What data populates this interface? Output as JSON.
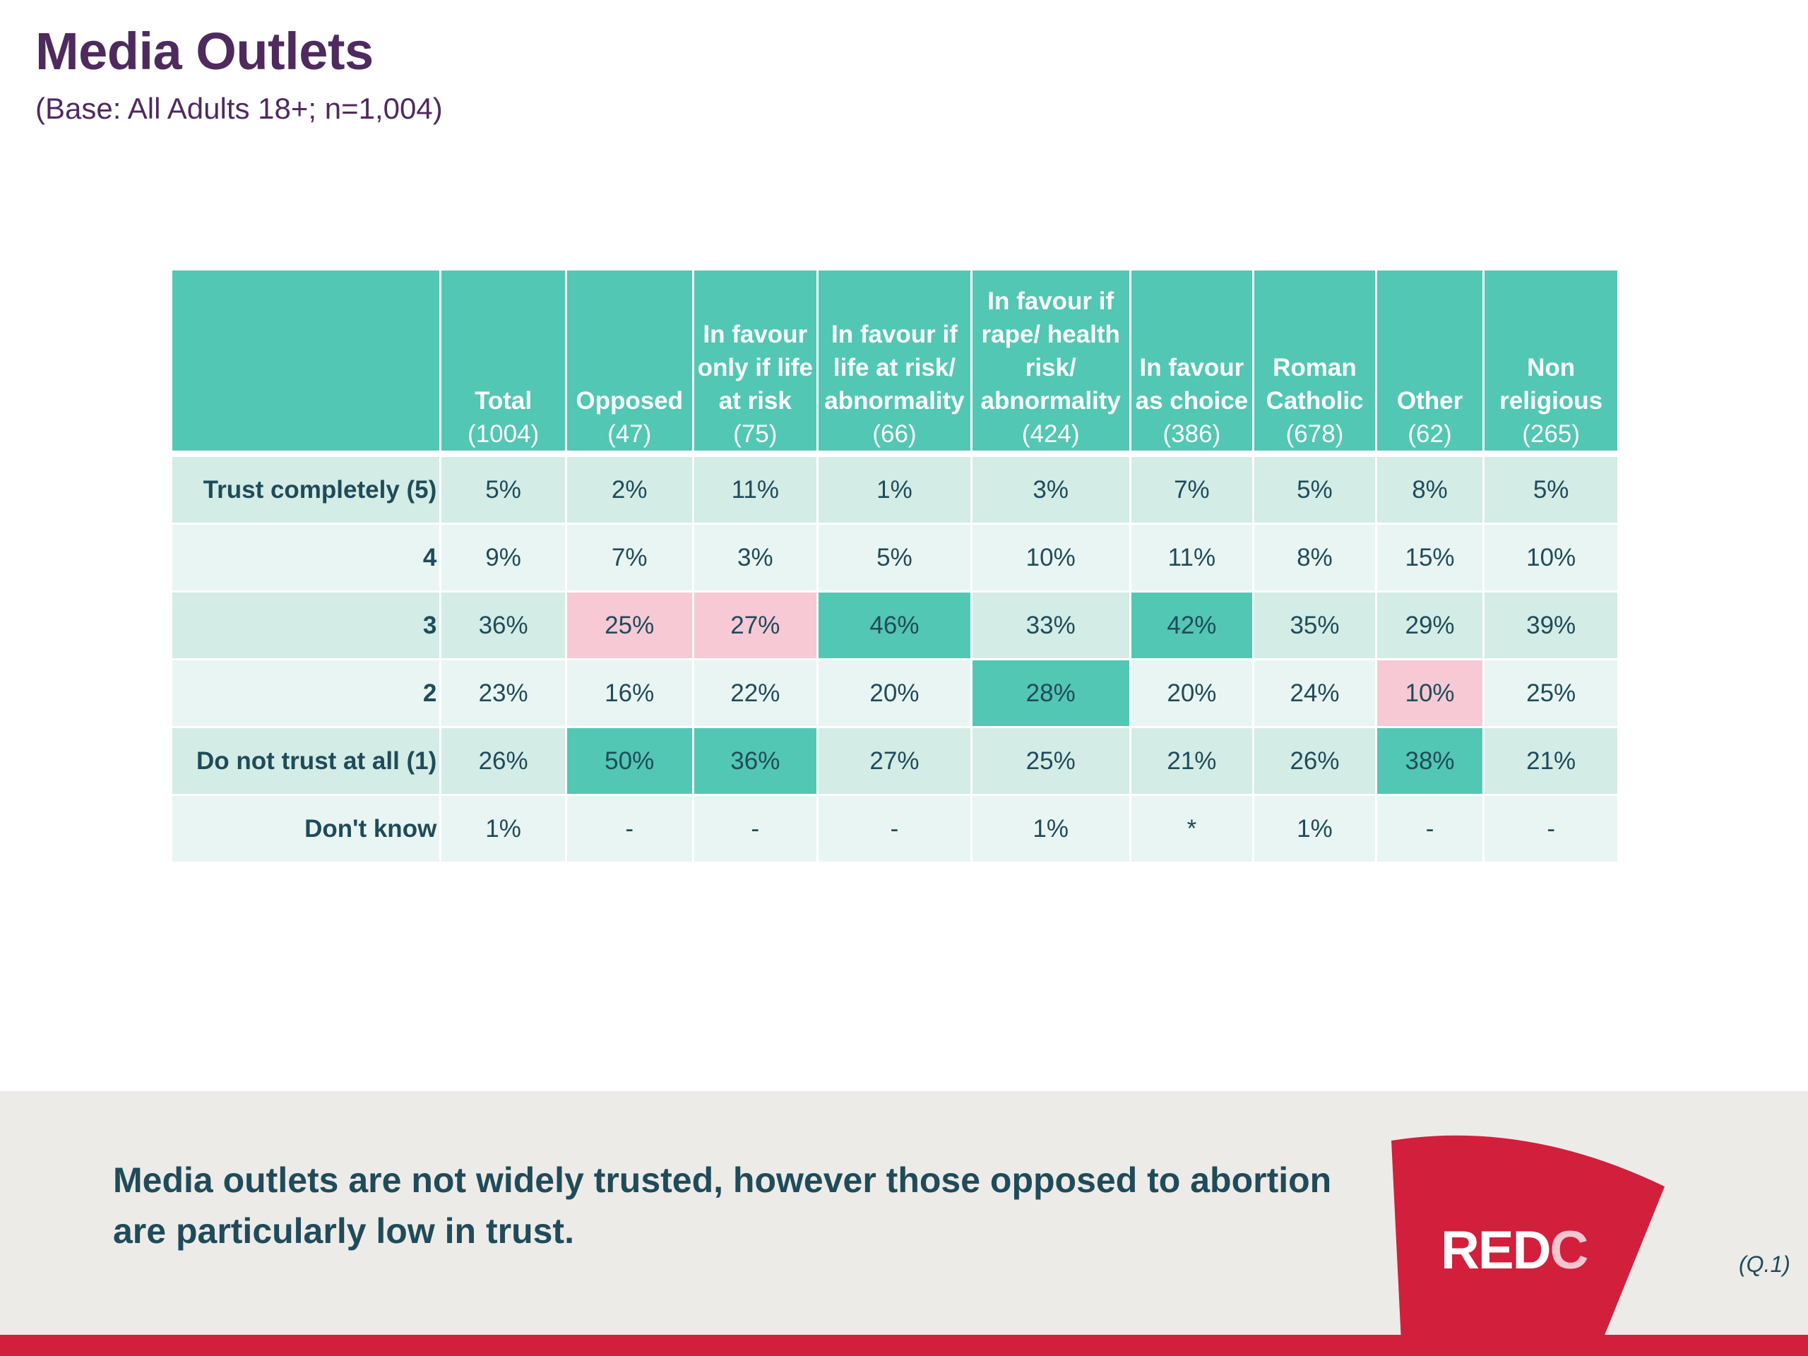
{
  "page": {
    "title": "Media Outlets",
    "subtitle": "(Base: All Adults 18+; n=1,004)"
  },
  "table": {
    "columns": [
      {
        "label_lines": [
          "Total"
        ],
        "n": "(1004)"
      },
      {
        "label_lines": [
          "Opposed"
        ],
        "n": "(47)"
      },
      {
        "label_lines": [
          "In favour",
          "only if life",
          "at risk"
        ],
        "n": "(75)"
      },
      {
        "label_lines": [
          "In favour if",
          "life at risk/",
          "abnormality"
        ],
        "n": "(66)"
      },
      {
        "label_lines": [
          "In favour if",
          "rape/ health",
          "risk/",
          "abnormality"
        ],
        "n": "(424)"
      },
      {
        "label_lines": [
          "In favour",
          "as choice"
        ],
        "n": "(386)"
      },
      {
        "label_lines": [
          "Roman",
          "Catholic"
        ],
        "n": "(678)"
      },
      {
        "label_lines": [
          "Other"
        ],
        "n": "(62)"
      },
      {
        "label_lines": [
          "Non",
          "religious"
        ],
        "n": "(265)"
      }
    ],
    "rows": [
      {
        "label": "Trust completely (5)",
        "values": [
          "5%",
          "2%",
          "11%",
          "1%",
          "3%",
          "7%",
          "5%",
          "8%",
          "5%"
        ],
        "highlight": [
          "",
          "",
          "",
          "",
          "",
          "",
          "",
          "",
          ""
        ]
      },
      {
        "label": "4",
        "values": [
          "9%",
          "7%",
          "3%",
          "5%",
          "10%",
          "11%",
          "8%",
          "15%",
          "10%"
        ],
        "highlight": [
          "",
          "",
          "",
          "",
          "",
          "",
          "",
          "",
          ""
        ]
      },
      {
        "label": "3",
        "values": [
          "36%",
          "25%",
          "27%",
          "46%",
          "33%",
          "42%",
          "35%",
          "29%",
          "39%"
        ],
        "highlight": [
          "",
          "lo",
          "lo",
          "hi",
          "",
          "hi",
          "",
          "",
          ""
        ]
      },
      {
        "label": "2",
        "values": [
          "23%",
          "16%",
          "22%",
          "20%",
          "28%",
          "20%",
          "24%",
          "10%",
          "25%"
        ],
        "highlight": [
          "",
          "",
          "",
          "",
          "hi",
          "",
          "",
          "lo",
          ""
        ]
      },
      {
        "label": "Do not trust at all (1)",
        "values": [
          "26%",
          "50%",
          "36%",
          "27%",
          "25%",
          "21%",
          "26%",
          "38%",
          "21%"
        ],
        "highlight": [
          "",
          "hi",
          "hi",
          "",
          "",
          "",
          "",
          "hi",
          ""
        ]
      },
      {
        "label": "Don't know",
        "values": [
          "1%",
          "-",
          "-",
          "-",
          "1%",
          "*",
          "1%",
          "-",
          "-"
        ],
        "highlight": [
          "",
          "",
          "",
          "",
          "",
          "",
          "",
          "",
          ""
        ]
      }
    ]
  },
  "footer": {
    "message_line1": "Media outlets are not widely trusted, however those opposed to abortion",
    "message_line2": "are particularly low in trust.",
    "logo_main": "RED",
    "logo_accent": "C",
    "reference": "(Q.1)"
  },
  "colors": {
    "title": "#4e2a5e",
    "header": "#52c7b3",
    "row_odd": "#d3ece5",
    "row_even": "#e9f5f2",
    "highlight_high": "#52c7b3",
    "highlight_low": "#f6c9d5",
    "brand_red": "#d21f3c"
  }
}
